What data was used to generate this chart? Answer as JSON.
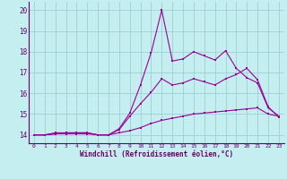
{
  "xlabel": "Windchill (Refroidissement éolien,°C)",
  "background_color": "#c5eef0",
  "line_color": "#990099",
  "grid_color": "#9ecfd4",
  "xlim": [
    -0.5,
    23.5
  ],
  "ylim": [
    13.6,
    20.4
  ],
  "xticks": [
    0,
    1,
    2,
    3,
    4,
    5,
    6,
    7,
    8,
    9,
    10,
    11,
    12,
    13,
    14,
    15,
    16,
    17,
    18,
    19,
    20,
    21,
    22,
    23
  ],
  "yticks": [
    14,
    15,
    16,
    17,
    18,
    19,
    20
  ],
  "line1_x": [
    0,
    1,
    2,
    3,
    4,
    5,
    6,
    7,
    8,
    9,
    10,
    11,
    12,
    13,
    14,
    15,
    16,
    17,
    18,
    19,
    20,
    21,
    22,
    23
  ],
  "line1_y": [
    14.0,
    14.0,
    14.1,
    14.1,
    14.1,
    14.1,
    14.0,
    14.0,
    14.3,
    15.05,
    16.4,
    17.95,
    20.0,
    17.55,
    17.65,
    18.0,
    17.8,
    17.6,
    18.05,
    17.2,
    16.75,
    16.5,
    15.3,
    14.9
  ],
  "line2_x": [
    0,
    1,
    2,
    3,
    4,
    5,
    6,
    7,
    8,
    9,
    10,
    11,
    12,
    13,
    14,
    15,
    16,
    17,
    18,
    19,
    20,
    21,
    22,
    23
  ],
  "line2_y": [
    14.0,
    14.0,
    14.05,
    14.1,
    14.1,
    14.1,
    14.0,
    14.0,
    14.25,
    14.9,
    15.5,
    16.05,
    16.7,
    16.4,
    16.5,
    16.7,
    16.55,
    16.4,
    16.7,
    16.9,
    17.2,
    16.65,
    15.35,
    14.85
  ],
  "line3_x": [
    0,
    1,
    2,
    3,
    4,
    5,
    6,
    7,
    8,
    9,
    10,
    11,
    12,
    13,
    14,
    15,
    16,
    17,
    18,
    19,
    20,
    21,
    22,
    23
  ],
  "line3_y": [
    14.0,
    14.0,
    14.05,
    14.05,
    14.05,
    14.05,
    14.0,
    14.0,
    14.1,
    14.2,
    14.35,
    14.55,
    14.7,
    14.8,
    14.9,
    15.0,
    15.05,
    15.1,
    15.15,
    15.2,
    15.25,
    15.3,
    15.0,
    14.9
  ]
}
